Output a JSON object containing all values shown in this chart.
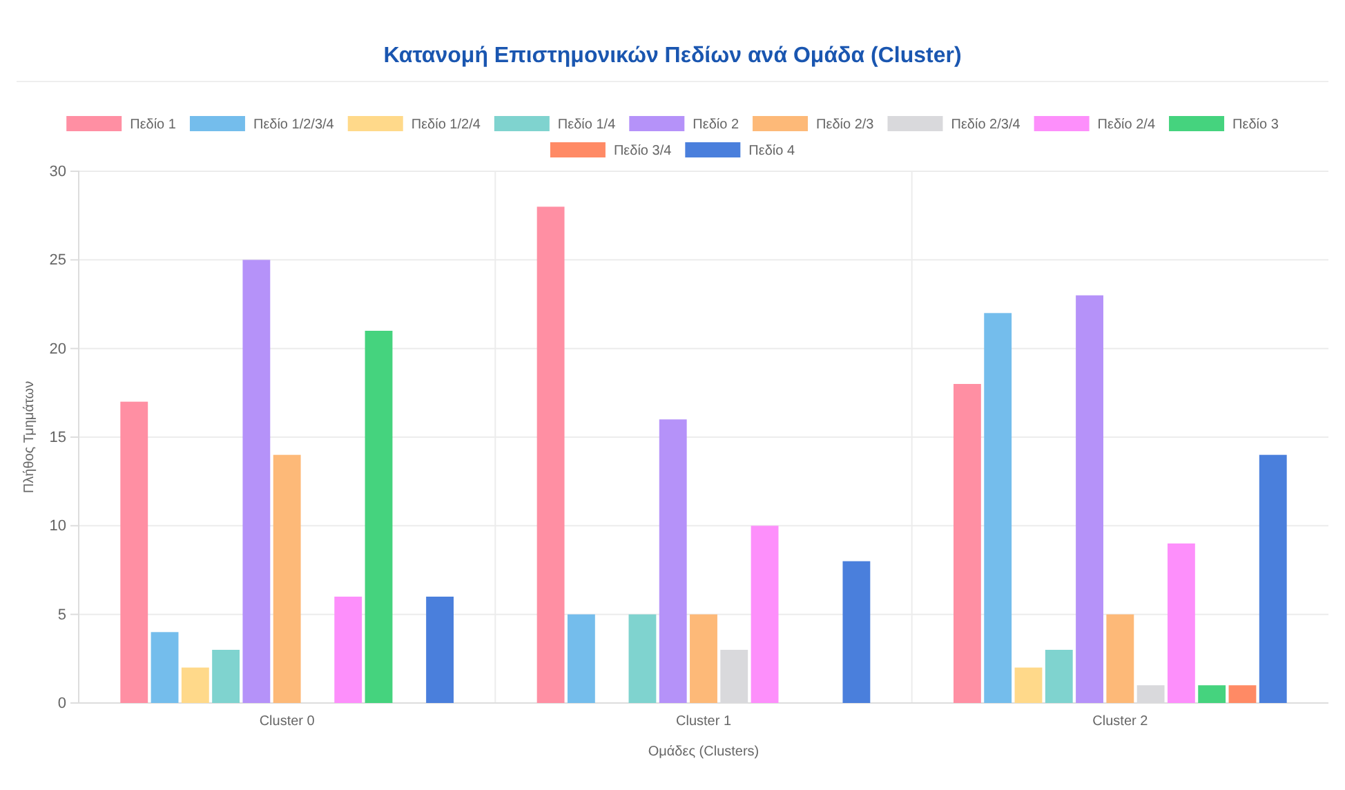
{
  "chart_data": {
    "type": "bar",
    "title": "Κατανομή Επιστημονικών Πεδίων ανά Ομάδα (Cluster)",
    "xlabel": "Ομάδες (Clusters)",
    "ylabel": "Πλήθος Τμημάτων",
    "categories": [
      "Cluster 0",
      "Cluster 1",
      "Cluster 2"
    ],
    "series": [
      {
        "name": "Πεδίο 1",
        "color": "#ff8fa3",
        "values": [
          17,
          28,
          18
        ]
      },
      {
        "name": "Πεδίο 1/2/3/4",
        "color": "#74bdec",
        "values": [
          4,
          5,
          22
        ]
      },
      {
        "name": "Πεδίο 1/2/4",
        "color": "#ffd98a",
        "values": [
          2,
          0,
          2
        ]
      },
      {
        "name": "Πεδίο 1/4",
        "color": "#7fd3cf",
        "values": [
          3,
          5,
          3
        ]
      },
      {
        "name": "Πεδίο 2",
        "color": "#b592f9",
        "values": [
          25,
          16,
          23
        ]
      },
      {
        "name": "Πεδίο 2/3",
        "color": "#fdb978",
        "values": [
          14,
          5,
          5
        ]
      },
      {
        "name": "Πεδίο 2/3/4",
        "color": "#d9d9dc",
        "values": [
          0,
          3,
          1
        ]
      },
      {
        "name": "Πεδίο 2/4",
        "color": "#fd8ffb",
        "values": [
          6,
          10,
          9
        ]
      },
      {
        "name": "Πεδίο 3",
        "color": "#45d37e",
        "values": [
          21,
          0,
          1
        ]
      },
      {
        "name": "Πεδίο 3/4",
        "color": "#ff8a65",
        "values": [
          0,
          0,
          1
        ]
      },
      {
        "name": "Πεδίο 4",
        "color": "#4a7fdc",
        "values": [
          6,
          8,
          14
        ]
      }
    ],
    "ylim": [
      0,
      30
    ],
    "yticks": [
      0,
      5,
      10,
      15,
      20,
      25,
      30
    ],
    "grid": true,
    "legend": "top"
  }
}
